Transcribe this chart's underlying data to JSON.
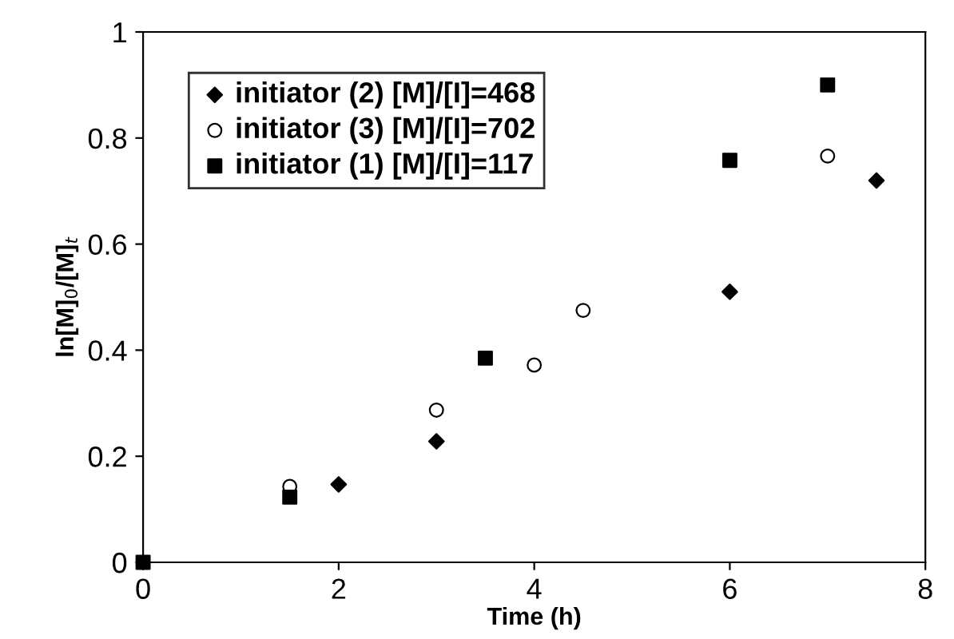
{
  "chart_data": {
    "type": "scatter",
    "xlabel": "Time (h)",
    "ylabel": "ln[M]$_{0}$/[M]$_{t}$",
    "xlim": [
      0,
      8
    ],
    "xticks": [
      0,
      2,
      4,
      6,
      8
    ],
    "ylim": [
      0,
      1
    ],
    "yticks": [
      0,
      {
        "value": 0.2,
        "label": "0.2"
      },
      {
        "value": 0.4,
        "label": "0.4"
      },
      {
        "value": 0.6,
        "label": "0.6"
      },
      {
        "value": 0.8,
        "label": "0.8"
      },
      1
    ],
    "grid": false,
    "legend": "top left",
    "series": [
      {
        "name": "initiator (2) [M]/[I]=468",
        "color": "#000000",
        "marker": "diamond",
        "x": [
          2,
          3,
          6,
          7.5
        ],
        "values": [
          0.147,
          0.228,
          0.51,
          0.72
        ]
      },
      {
        "name": "initiator (3) [M]/[I]=702",
        "color": "#ffffff",
        "marker": "circle",
        "x": [
          1.5,
          3,
          4,
          4.5,
          7
        ],
        "values": [
          0.143,
          0.287,
          0.372,
          0.475,
          0.766
        ]
      },
      {
        "name": "initiator (1) [M]/[I]=117",
        "color": "#000000",
        "marker": "square",
        "x": [
          0,
          1.5,
          3.5,
          6,
          7
        ],
        "values": [
          0,
          0.123,
          0.385,
          0.758,
          0.9
        ]
      }
    ]
  }
}
